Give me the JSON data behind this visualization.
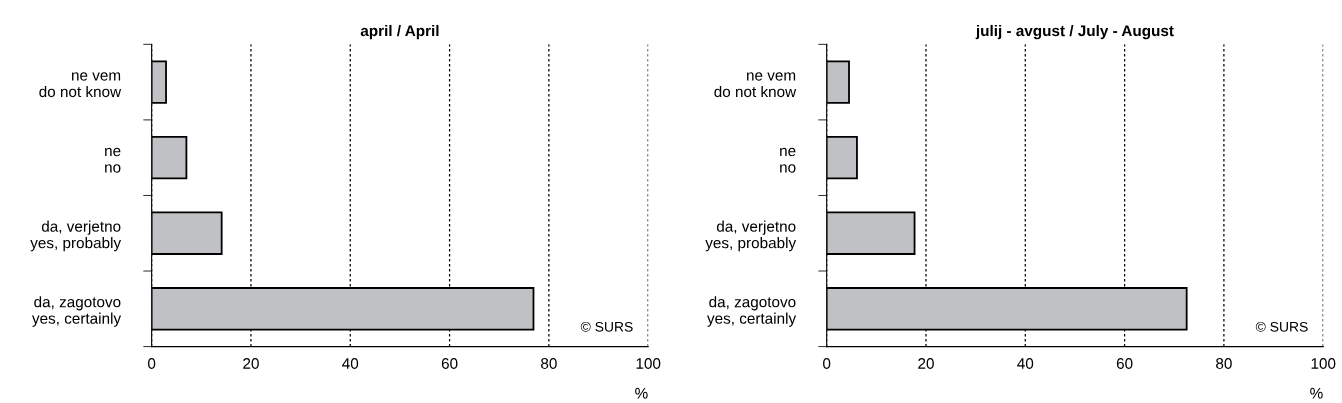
{
  "chart_data": [
    {
      "type": "bar",
      "orientation": "horizontal",
      "title": "april / April",
      "xlabel": "%",
      "categories": [
        "ne vem\ndo not know",
        "ne\nno",
        "da, verjetno\nyes, probably",
        "da, zagotovo\nyes, certainly"
      ],
      "values": [
        2.9,
        7.0,
        14.1,
        76.9
      ],
      "color": "#c0c1c4",
      "xlim": [
        0,
        100
      ],
      "xticks": [
        0,
        20,
        40,
        60,
        80,
        100
      ],
      "grid": "x",
      "annotations": [
        "© SURS"
      ]
    },
    {
      "type": "bar",
      "orientation": "horizontal",
      "title": "julij - avgust / July - August",
      "xlabel": "%",
      "categories": [
        "ne vem\ndo not know",
        "ne\nno",
        "da, verjetno\nyes, probably",
        "da, zagotovo\nyes, certainly"
      ],
      "values": [
        4.5,
        6.1,
        17.7,
        72.5
      ],
      "color": "#c0c1c4",
      "xlim": [
        0,
        100
      ],
      "xticks": [
        0,
        20,
        40,
        60,
        80,
        100
      ],
      "grid": "x",
      "annotations": [
        "© SURS"
      ]
    }
  ]
}
